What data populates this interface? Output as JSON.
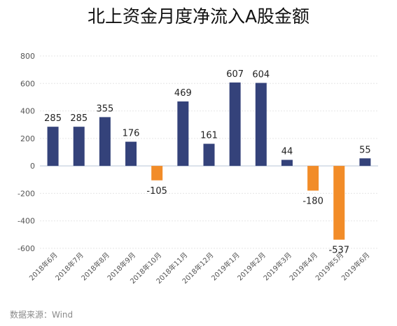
{
  "chart_data": {
    "type": "bar",
    "title": "北上资金月度净流入A股金额",
    "xlabel": "",
    "ylabel": "",
    "ylim": [
      -600,
      800
    ],
    "yticks": [
      -600,
      -400,
      -200,
      0,
      200,
      400,
      600,
      800
    ],
    "grid": true,
    "categories": [
      "2018年6月",
      "2018年7月",
      "2018年8月",
      "2018年9月",
      "2018年10月",
      "2018年11月",
      "2018年12月",
      "2019年1月",
      "2019年2月",
      "2019年3月",
      "2019年4月",
      "2019年5月",
      "2019年6月"
    ],
    "values": [
      285,
      285,
      355,
      176,
      -105,
      469,
      161,
      607,
      604,
      44,
      -180,
      -537,
      55
    ],
    "colors": {
      "positive": "#34427a",
      "negative": "#f28c28"
    }
  },
  "source": "数据来源：Wind"
}
